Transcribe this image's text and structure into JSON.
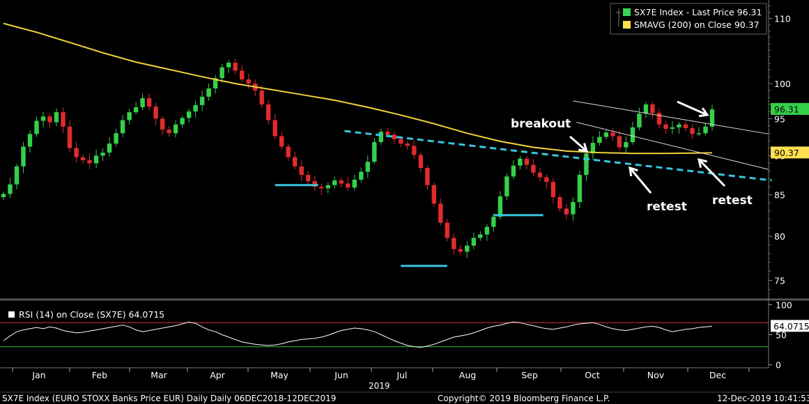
{
  "chart_data": [
    {
      "type": "candlestick",
      "ticker": "SX7E Index",
      "ylim": [
        73,
        113
      ],
      "yticks": [
        75,
        80,
        85,
        90,
        95,
        100,
        110
      ],
      "months": [
        "Jan",
        "Feb",
        "Mar",
        "Apr",
        "May",
        "Jun",
        "Jul",
        "Aug",
        "Sep",
        "Oct",
        "Nov",
        "Dec"
      ],
      "year_label": "2019",
      "legend": [
        {
          "label": "SX7E Index - Last Price 96.31",
          "color": "#39d353"
        },
        {
          "label": "SMAVG (200)  on Close  90.37",
          "color": "#ffe14d"
        }
      ],
      "price_closes": [
        85.1,
        86.3,
        88.6,
        91.2,
        92.9,
        94.7,
        95.3,
        94.5,
        95.9,
        93.9,
        91.0,
        89.8,
        89.4,
        89.0,
        90.0,
        90.4,
        91.6,
        93.0,
        94.8,
        95.9,
        96.6,
        97.9,
        96.7,
        95.0,
        93.5,
        93.0,
        94.2,
        95.1,
        96.0,
        96.9,
        98.1,
        99.3,
        100.8,
        102.4,
        103.1,
        101.9,
        100.6,
        100.0,
        99.0,
        97.0,
        94.8,
        92.6,
        91.2,
        89.8,
        88.6,
        87.5,
        86.7,
        86.0,
        85.8,
        86.2,
        86.8,
        86.4,
        85.9,
        86.9,
        87.9,
        89.2,
        91.8,
        93.2,
        92.8,
        92.2,
        91.6,
        91.3,
        90.1,
        88.4,
        86.2,
        83.9,
        81.6,
        79.8,
        78.5,
        78.2,
        78.9,
        79.8,
        80.2,
        81.1,
        82.3,
        84.8,
        87.3,
        88.7,
        89.6,
        88.8,
        87.8,
        87.2,
        86.6,
        84.7,
        83.3,
        82.6,
        84.1,
        87.5,
        90.3,
        91.7,
        92.5,
        93.1,
        92.6,
        91.1,
        91.8,
        93.8,
        95.7,
        97.0,
        95.8,
        94.2,
        93.6,
        93.8,
        94.2,
        93.7,
        92.9,
        93.0,
        93.9,
        96.3
      ],
      "sma200": [
        [
          0,
          109.2
        ],
        [
          5,
          107.8
        ],
        [
          10,
          106.2
        ],
        [
          15,
          104.6
        ],
        [
          20,
          103.2
        ],
        [
          25,
          102.1
        ],
        [
          30,
          101.0
        ],
        [
          35,
          100.0
        ],
        [
          40,
          99.2
        ],
        [
          45,
          98.4
        ],
        [
          50,
          97.6
        ],
        [
          55,
          96.6
        ],
        [
          60,
          95.5
        ],
        [
          65,
          94.3
        ],
        [
          70,
          93.0
        ],
        [
          75,
          91.9
        ],
        [
          80,
          91.1
        ],
        [
          85,
          90.6
        ],
        [
          90,
          90.4
        ],
        [
          95,
          90.3
        ],
        [
          100,
          90.3
        ],
        [
          107,
          90.37
        ]
      ],
      "current_price_label": "96.31",
      "current_sma_label": "90.37",
      "annotations": {
        "breakout": "breakout",
        "retest1": "retest",
        "retest2": "retest"
      },
      "support_levels": [
        86.2,
        76.6,
        82.5
      ],
      "trendline_start": 93.3,
      "trendline_end": 86.8
    },
    {
      "type": "line",
      "title": "RSI (14)  on Close (SX7E) 64.0715",
      "ylim": [
        -5,
        105
      ],
      "yticks": [
        0,
        50,
        100
      ],
      "levels": [
        70,
        30
      ],
      "current_label": "64.0715",
      "values": [
        40,
        48,
        55,
        58,
        60,
        62,
        60,
        63,
        61,
        57,
        55,
        53,
        54,
        56,
        58,
        60,
        62,
        64,
        66,
        63,
        58,
        55,
        57,
        59,
        61,
        63,
        65,
        68,
        71,
        69,
        63,
        58,
        55,
        50,
        46,
        42,
        38,
        36,
        34,
        33,
        32,
        33,
        35,
        38,
        40,
        42,
        43,
        44,
        46,
        49,
        53,
        57,
        59,
        61,
        60,
        58,
        55,
        50,
        45,
        40,
        36,
        32,
        30,
        29,
        31,
        34,
        38,
        42,
        46,
        48,
        50,
        53,
        57,
        61,
        64,
        66,
        69,
        71,
        70,
        67,
        65,
        62,
        60,
        59,
        61,
        63,
        66,
        68,
        69,
        70,
        67,
        63,
        60,
        58,
        57,
        59,
        61,
        63,
        64,
        62,
        58,
        55,
        57,
        59,
        60,
        62,
        63,
        64
      ]
    }
  ],
  "footer": {
    "left": "SX7E Index (EURO STOXX Banks Price EUR) Daily  Daily 06DEC2018-12DEC2019",
    "center": "Copyright© 2019 Bloomberg Finance L.P.",
    "right": "12-Dec-2019 10:41:53"
  }
}
